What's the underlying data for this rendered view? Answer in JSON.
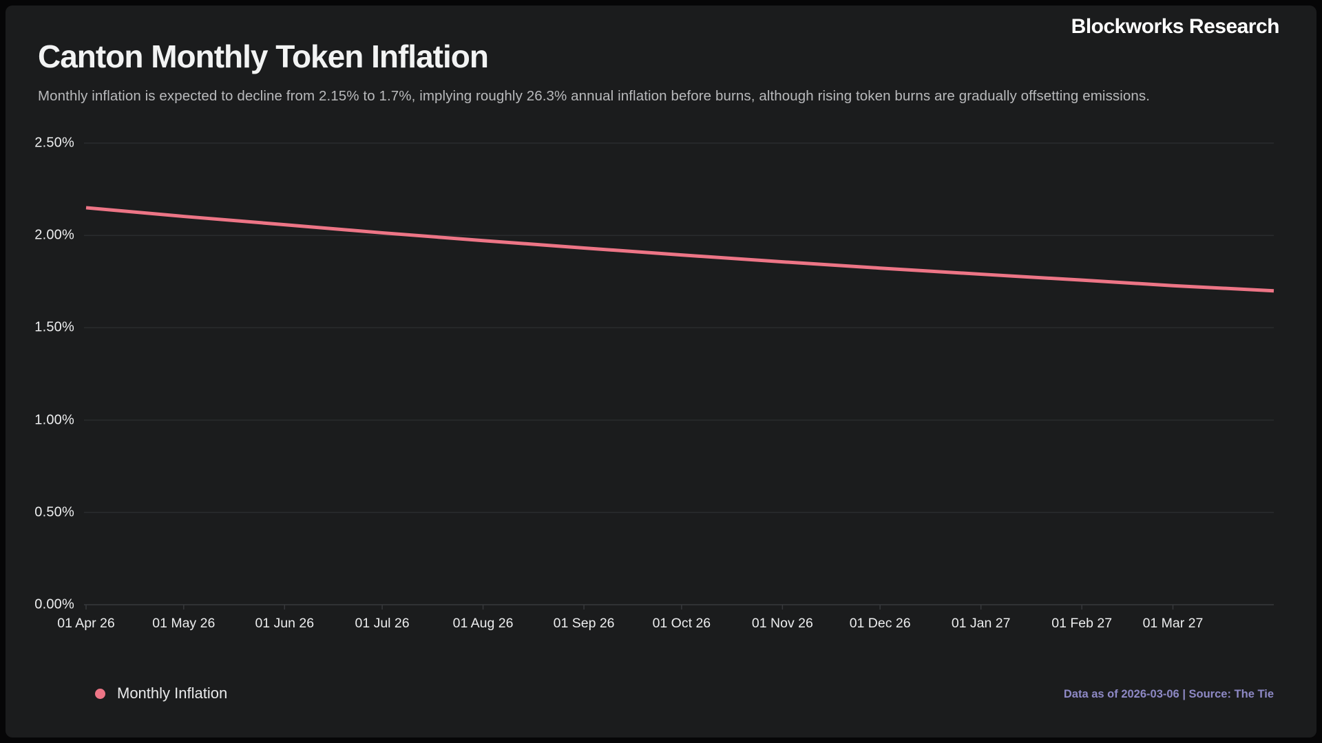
{
  "header": {
    "brand": "Blockworks Research",
    "title": "Canton Monthly Token Inflation",
    "subtitle": "Monthly inflation is expected to decline from 2.15% to 1.7%, implying roughly 26.3% annual inflation before burns, although rising token burns are gradually offsetting emissions."
  },
  "legend": {
    "items": [
      {
        "label": "Monthly Inflation",
        "marker": "dot",
        "color": "#ed7586"
      }
    ]
  },
  "footer": {
    "note": "Data as of 2026-03-06 | Source: The Tie"
  },
  "colors": {
    "background": "#060607",
    "panel": "#1b1c1d",
    "gridline": "#2a2c2e",
    "axis_line": "#37393c",
    "series_pink": "#ed7586",
    "tick_text": "#edeeef",
    "source_text": "#8e89c5"
  },
  "chart_data": {
    "type": "line",
    "title": "Canton Monthly Token Inflation",
    "xlabel": "",
    "ylabel": "",
    "ylim": [
      0,
      2.5
    ],
    "grid": "horizontal",
    "legend_position": "bottom-left",
    "y_tick_labels": [
      "0.00%",
      "0.50%",
      "1.00%",
      "1.50%",
      "2.00%",
      "2.50%"
    ],
    "y_tick_values": [
      0,
      0.5,
      1.0,
      1.5,
      2.0,
      2.5
    ],
    "x_tick_labels": [
      "01 Apr 26",
      "01 May 26",
      "01 Jun 26",
      "01 Jul 26",
      "01 Aug 26",
      "01 Sep 26",
      "01 Oct 26",
      "01 Nov 26",
      "01 Dec 26",
      "01 Jan 27",
      "01 Feb 27",
      "01 Mar 27"
    ],
    "x_tick_dates": [
      "2026-04-01",
      "2026-05-01",
      "2026-06-01",
      "2026-07-01",
      "2026-08-01",
      "2026-09-01",
      "2026-10-01",
      "2026-11-01",
      "2026-12-01",
      "2027-01-01",
      "2027-02-01",
      "2027-03-01"
    ],
    "x": [
      "2026-04-01",
      "2026-05-01",
      "2026-06-01",
      "2026-07-01",
      "2026-08-01",
      "2026-09-01",
      "2026-10-01",
      "2026-11-01",
      "2026-12-01",
      "2027-01-01",
      "2027-02-01",
      "2027-03-01",
      "2027-04-01"
    ],
    "series": [
      {
        "name": "Monthly Inflation",
        "color": "#ed7586",
        "unit": "%",
        "values": [
          2.15,
          2.103,
          2.058,
          2.014,
          1.972,
          1.932,
          1.894,
          1.857,
          1.823,
          1.79,
          1.758,
          1.728,
          1.7
        ]
      }
    ]
  }
}
